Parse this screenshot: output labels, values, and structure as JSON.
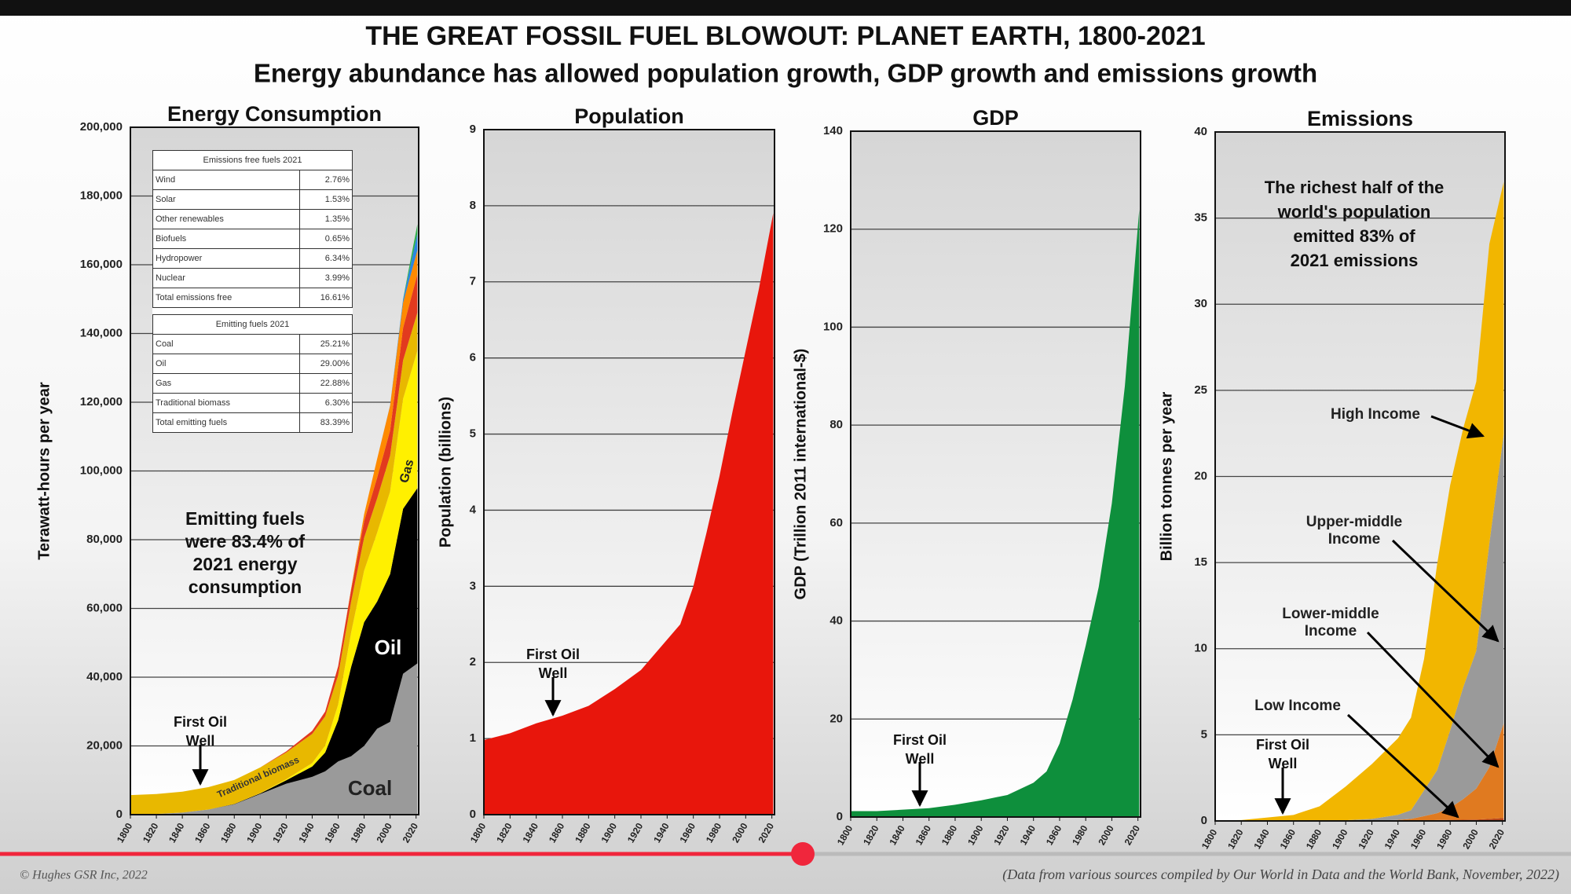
{
  "header": {
    "title": "THE GREAT FOSSIL FUEL BLOWOUT: PLANET EARTH, 1800-2021",
    "subtitle": "Energy abundance has allowed population growth, GDP growth and emissions growth"
  },
  "chart_data": [
    {
      "type": "area",
      "stacked": true,
      "title": "Energy Consumption",
      "ylabel": "Terawatt-hours per year",
      "x": [
        1800,
        1820,
        1840,
        1860,
        1880,
        1900,
        1920,
        1940,
        1950,
        1960,
        1970,
        1980,
        1990,
        2000,
        2010,
        2021
      ],
      "xlim": [
        1800,
        2022
      ],
      "xticks": [
        1800,
        1820,
        1840,
        1860,
        1880,
        1900,
        1920,
        1940,
        1960,
        1980,
        2000,
        2020
      ],
      "ylim": [
        0,
        200000
      ],
      "yticks": [
        0,
        {
          "value": 20000,
          "label": "20,000"
        },
        {
          "value": 40000,
          "label": "40,000"
        },
        {
          "value": 60000,
          "label": "60,000"
        },
        {
          "value": 80000,
          "label": "80,000"
        },
        {
          "value": 100000,
          "label": "100,000"
        },
        {
          "value": 120000,
          "label": "120,000"
        },
        {
          "value": 140000,
          "label": "140,000"
        },
        {
          "value": 160000,
          "label": "160,000"
        },
        {
          "value": 180000,
          "label": "180,000"
        },
        {
          "value": 200000,
          "label": "200,000"
        }
      ],
      "grid": true,
      "series": [
        {
          "name": "Coal",
          "color": "#9a9a9a",
          "values": [
            97,
            200,
            600,
            1500,
            3000,
            6000,
            9000,
            11000,
            12600,
            15500,
            17000,
            20000,
            25000,
            27000,
            41000,
            44000
          ]
        },
        {
          "name": "Oil",
          "color": "#000000",
          "values": [
            0,
            0,
            0,
            0,
            100,
            200,
            1000,
            3000,
            5500,
            12000,
            26000,
            36000,
            37000,
            43000,
            48000,
            51000
          ]
        },
        {
          "name": "Gas",
          "color": "#fff000",
          "values": [
            0,
            0,
            0,
            0,
            0,
            50,
            300,
            1000,
            2000,
            4500,
            10000,
            15000,
            20000,
            24000,
            32000,
            40000
          ]
        },
        {
          "name": "Traditional biomass",
          "color": "#e8b800",
          "values": [
            5600,
            5800,
            6100,
            6500,
            7000,
            7500,
            7800,
            8500,
            8500,
            8600,
            9000,
            9600,
            10000,
            10500,
            11200,
            11100
          ]
        },
        {
          "color": "#e23a1e",
          "values": [
            0,
            0,
            0,
            0,
            0,
            0,
            300,
            900,
            1400,
            2600,
            3500,
            4800,
            6000,
            7300,
            9400,
            11100
          ]
        },
        {
          "color": "#ff8a00",
          "values": [
            0,
            0,
            0,
            0,
            0,
            0,
            0,
            0,
            0,
            0,
            300,
            2000,
            5500,
            7200,
            7400,
            7000
          ]
        },
        {
          "color": "#2a86e0",
          "values": [
            0,
            0,
            0,
            0,
            0,
            0,
            0,
            0,
            0,
            0,
            0,
            0,
            0,
            90,
            900,
            4900
          ]
        },
        {
          "color": "#2fb04a",
          "values": [
            0,
            0,
            0,
            0,
            0,
            0,
            0,
            0,
            0,
            0,
            0,
            0,
            0,
            0,
            90,
            2700
          ]
        }
      ],
      "annotations": [
        [
          "Emitting fuels",
          "were 83.4% of",
          "2021 energy",
          "consumption"
        ],
        [
          "First Oil",
          "Well"
        ]
      ],
      "inset_tables": [
        {
          "title": "Emissions free fuels 2021",
          "rows": [
            [
              "Wind",
              "2.76%"
            ],
            [
              "Solar",
              "1.53%"
            ],
            [
              "Other renewables",
              "1.35%"
            ],
            [
              "Biofuels",
              "0.65%"
            ],
            [
              "Hydropower",
              "6.34%"
            ],
            [
              "Nuclear",
              "3.99%"
            ],
            [
              "Total emissions free",
              "16.61%"
            ]
          ]
        },
        {
          "title": "Emitting fuels 2021",
          "rows": [
            [
              "Coal",
              "25.21%"
            ],
            [
              "Oil",
              "29.00%"
            ],
            [
              "Gas",
              "22.88%"
            ],
            [
              "Traditional biomass",
              "6.30%"
            ],
            [
              "Total emitting fuels",
              "83.39%"
            ]
          ]
        }
      ]
    },
    {
      "type": "area",
      "stacked": true,
      "title": "Population",
      "ylabel": "Population (billions)",
      "x": [
        1800,
        1820,
        1840,
        1860,
        1880,
        1900,
        1920,
        1940,
        1950,
        1960,
        1970,
        1980,
        1990,
        2000,
        2010,
        2021
      ],
      "xlim": [
        1800,
        2022
      ],
      "xticks": [
        1800,
        1820,
        1840,
        1860,
        1880,
        1900,
        1920,
        1940,
        1960,
        1980,
        2000,
        2020
      ],
      "ylim": [
        0,
        9
      ],
      "yticks": [
        0,
        1,
        2,
        3,
        4,
        5,
        6,
        7,
        8,
        9
      ],
      "grid": true,
      "series": [
        {
          "color": "#e8160c",
          "values": [
            0.98,
            1.07,
            1.2,
            1.3,
            1.43,
            1.65,
            1.9,
            2.3,
            2.5,
            3.0,
            3.7,
            4.45,
            5.3,
            6.1,
            6.9,
            7.9
          ]
        }
      ],
      "annotations": [
        [
          "First Oil",
          "Well"
        ]
      ]
    },
    {
      "type": "area",
      "stacked": true,
      "title": "GDP",
      "ylabel": "GDP (Trillion 2011 international-$)",
      "x": [
        1800,
        1820,
        1840,
        1860,
        1880,
        1900,
        1920,
        1940,
        1950,
        1960,
        1970,
        1980,
        1990,
        2000,
        2010,
        2021
      ],
      "xlim": [
        1800,
        2022
      ],
      "xticks": [
        1800,
        1820,
        1840,
        1860,
        1880,
        1900,
        1920,
        1940,
        1960,
        1980,
        2000,
        2020
      ],
      "ylim": [
        0,
        140
      ],
      "yticks": [
        0,
        20,
        40,
        60,
        80,
        100,
        120,
        140
      ],
      "grid": true,
      "series": [
        {
          "color": "#0e8f3c",
          "values": [
            1.2,
            1.2,
            1.5,
            1.8,
            2.5,
            3.4,
            4.5,
            7,
            9.3,
            15,
            24,
            35,
            47,
            64,
            88,
            124
          ]
        }
      ],
      "annotations": [
        [
          "First Oil",
          "Well"
        ]
      ]
    },
    {
      "type": "area",
      "stacked": true,
      "title": "Emissions",
      "ylabel": "Billion tonnes per year",
      "x": [
        1800,
        1820,
        1840,
        1860,
        1880,
        1900,
        1920,
        1940,
        1950,
        1960,
        1970,
        1980,
        1990,
        2000,
        2010,
        2021
      ],
      "xlim": [
        1800,
        2022
      ],
      "xticks": [
        1800,
        1820,
        1840,
        1860,
        1880,
        1900,
        1920,
        1940,
        1960,
        1980,
        2000,
        2020
      ],
      "ylim": [
        0,
        40
      ],
      "yticks": [
        0,
        5,
        10,
        15,
        20,
        25,
        30,
        35,
        40
      ],
      "grid": true,
      "series": [
        {
          "name": "Low Income",
          "color": "#b8461a",
          "values": [
            0,
            0,
            0,
            0,
            0,
            0,
            0,
            0.01,
            0.02,
            0.03,
            0.05,
            0.06,
            0.07,
            0.08,
            0.12,
            0.17
          ]
        },
        {
          "name": "Lower-middle Income",
          "color": "#e07a20",
          "values": [
            0,
            0,
            0,
            0,
            0,
            0.01,
            0.02,
            0.05,
            0.1,
            0.25,
            0.4,
            0.7,
            1.2,
            1.8,
            3.0,
            5.5
          ]
        },
        {
          "name": "Upper-middle Income",
          "color": "#9a9a9a",
          "values": [
            0,
            0,
            0,
            0,
            0.01,
            0.03,
            0.1,
            0.3,
            0.5,
            1.5,
            2.5,
            4.5,
            6.5,
            8,
            13,
            16.8
          ]
        },
        {
          "name": "High Income",
          "color": "#f2b600",
          "values": [
            0.03,
            0.05,
            0.2,
            0.35,
            0.84,
            1.96,
            3.18,
            4.44,
            5.38,
            7.62,
            11.95,
            14.24,
            15.03,
            15.62,
            17.38,
            14.63
          ]
        }
      ],
      "annotations": [
        [
          "The richest half of the",
          "world's population",
          "emitted 83% of",
          "2021 emissions"
        ],
        [
          "First Oil",
          "Well"
        ]
      ]
    }
  ],
  "footer": {
    "copyright": "© Hughes GSR Inc, 2022",
    "source": "(Data from various sources compiled by Our World in Data and the World Bank, November, 2022)"
  }
}
